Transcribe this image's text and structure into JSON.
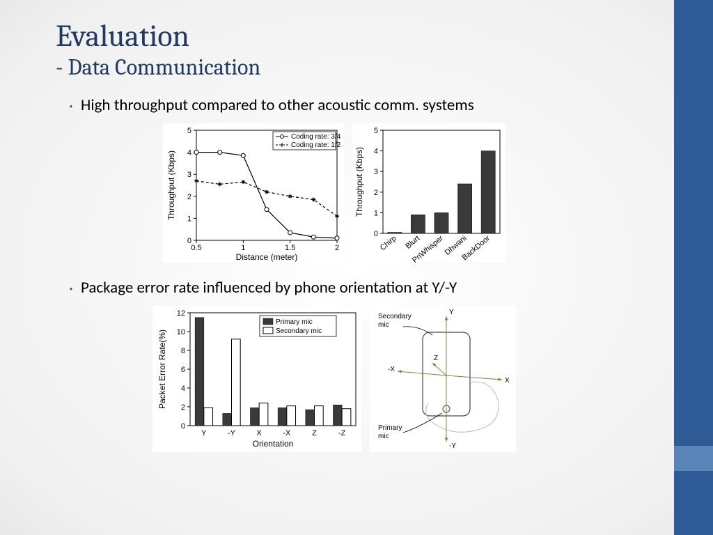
{
  "title": "Evaluation",
  "subtitle": "- Data Communication",
  "bullets": {
    "b1": "High throughput compared to other acoustic comm. systems",
    "b2": "Package error rate influenced by phone orientation at Y/-Y"
  },
  "colors": {
    "heading": "#1f3864",
    "accent": "#2e5b95",
    "accent_light": "#5b85b8",
    "bar": "#3a3a3a",
    "axis_green": "#6a8f3a"
  },
  "chart_line": {
    "type": "line",
    "xlabel": "Distance (meter)",
    "ylabel": "Throughput (Kbps)",
    "xlim": [
      0.5,
      2.0
    ],
    "xticks": [
      0.5,
      1.0,
      1.5,
      2.0
    ],
    "ylim": [
      0,
      5
    ],
    "yticks": [
      0,
      1,
      2,
      3,
      4,
      5
    ],
    "legend": [
      "Coding rate: 3/4",
      "Coding rate: 1/2"
    ],
    "series": [
      {
        "name": "3/4",
        "marker": "circle",
        "dash": "none",
        "x": [
          0.5,
          0.75,
          1.0,
          1.25,
          1.5,
          1.75,
          2.0
        ],
        "y": [
          4.0,
          4.0,
          3.85,
          1.4,
          0.35,
          0.15,
          0.1
        ]
      },
      {
        "name": "1/2",
        "marker": "star",
        "dash": "4,3",
        "x": [
          0.5,
          0.75,
          1.0,
          1.25,
          1.5,
          1.75,
          2.0
        ],
        "y": [
          2.7,
          2.55,
          2.65,
          2.2,
          2.0,
          1.85,
          1.1
        ]
      }
    ]
  },
  "chart_bar1": {
    "type": "bar",
    "ylabel": "Throughput (Kbps)",
    "ylim": [
      0,
      5
    ],
    "yticks": [
      0,
      1,
      2,
      3,
      4,
      5
    ],
    "categories": [
      "Chirp",
      "Blurt",
      "PriWhisper",
      "Dhwani",
      "BackDoor"
    ],
    "values": [
      0.05,
      0.9,
      1.0,
      2.4,
      4.0
    ],
    "bar_color": "#3a3a3a"
  },
  "chart_bar2": {
    "type": "grouped-bar",
    "xlabel": "Orientation",
    "ylabel": "Packet Error Rate(%)",
    "ylim": [
      0,
      12
    ],
    "yticks": [
      0,
      2,
      4,
      6,
      8,
      10,
      12
    ],
    "categories": [
      "Y",
      "-Y",
      "X",
      "-X",
      "Z",
      "-Z"
    ],
    "legend": [
      "Primary mic",
      "Secondary mic"
    ],
    "series": {
      "primary": [
        11.5,
        1.3,
        1.9,
        1.9,
        1.7,
        2.2
      ],
      "secondary": [
        1.9,
        9.2,
        2.4,
        2.1,
        2.1,
        1.8
      ]
    }
  },
  "diagram": {
    "type": "infographic",
    "labels": {
      "sec_mic": "Secondary\nmic",
      "pri_mic": "Primary\nmic",
      "axes": [
        "Y",
        "-Y",
        "X",
        "-X",
        "Z"
      ]
    }
  }
}
